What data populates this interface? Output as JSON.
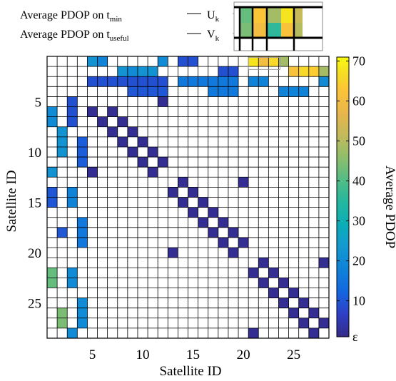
{
  "chart_data": {
    "type": "heatmap",
    "xlabel": "Satellite ID",
    "ylabel": "Satellite ID",
    "x_ticks": [
      5,
      10,
      15,
      20,
      25
    ],
    "y_ticks": [
      5,
      10,
      15,
      20,
      25
    ],
    "grid_size": 28,
    "colorbar": {
      "label": "Average PDOP",
      "range": [
        1,
        71
      ],
      "ticks": [
        {
          "value": 70,
          "label": "70"
        },
        {
          "value": 60,
          "label": "60"
        },
        {
          "value": 50,
          "label": "50"
        },
        {
          "value": 40,
          "label": "40"
        },
        {
          "value": 30,
          "label": "30"
        },
        {
          "value": 20,
          "label": "20"
        },
        {
          "value": 10,
          "label": "10"
        },
        {
          "value": 1,
          "label": "ε"
        }
      ]
    },
    "inset": {
      "label_u_main": "Average PDOP on t",
      "label_u_sub": "min",
      "label_u_symbol": "U",
      "label_u_symbol_sub": "k",
      "label_v_main": "Average PDOP on t",
      "label_v_sub": "useful",
      "label_v_symbol": "V",
      "label_v_symbol_sub": "k",
      "top_values": [
        42,
        63,
        48,
        68,
        52
      ],
      "bottom_values": [
        44,
        60,
        36,
        62,
        50
      ]
    },
    "cells": [
      {
        "row": 1,
        "col": 5,
        "value": 22
      },
      {
        "row": 1,
        "col": 6,
        "value": 18
      },
      {
        "row": 1,
        "col": 12,
        "value": 20
      },
      {
        "row": 1,
        "col": 14,
        "value": 9
      },
      {
        "row": 1,
        "col": 15,
        "value": 9
      },
      {
        "row": 1,
        "col": 21,
        "value": 68
      },
      {
        "row": 1,
        "col": 22,
        "value": 60
      },
      {
        "row": 1,
        "col": 23,
        "value": 66
      },
      {
        "row": 1,
        "col": 24,
        "value": 48
      },
      {
        "row": 2,
        "col": 8,
        "value": 22
      },
      {
        "row": 2,
        "col": 9,
        "value": 20
      },
      {
        "row": 2,
        "col": 10,
        "value": 22
      },
      {
        "row": 2,
        "col": 11,
        "value": 22
      },
      {
        "row": 2,
        "col": 18,
        "value": 9
      },
      {
        "row": 2,
        "col": 19,
        "value": 9
      },
      {
        "row": 2,
        "col": 25,
        "value": 62
      },
      {
        "row": 2,
        "col": 26,
        "value": 66
      },
      {
        "row": 2,
        "col": 27,
        "value": 64
      },
      {
        "row": 2,
        "col": 28,
        "value": 48
      },
      {
        "row": 3,
        "col": 5,
        "value": 9
      },
      {
        "row": 3,
        "col": 6,
        "value": 9
      },
      {
        "row": 3,
        "col": 7,
        "value": 9
      },
      {
        "row": 3,
        "col": 8,
        "value": 9
      },
      {
        "row": 3,
        "col": 9,
        "value": 9
      },
      {
        "row": 3,
        "col": 10,
        "value": 9
      },
      {
        "row": 3,
        "col": 11,
        "value": 9
      },
      {
        "row": 3,
        "col": 12,
        "value": 9
      },
      {
        "row": 3,
        "col": 14,
        "value": 16
      },
      {
        "row": 3,
        "col": 15,
        "value": 16
      },
      {
        "row": 3,
        "col": 16,
        "value": 16
      },
      {
        "row": 3,
        "col": 17,
        "value": 16
      },
      {
        "row": 3,
        "col": 18,
        "value": 16
      },
      {
        "row": 3,
        "col": 19,
        "value": 16
      },
      {
        "row": 3,
        "col": 21,
        "value": 18
      },
      {
        "row": 3,
        "col": 22,
        "value": 18
      },
      {
        "row": 3,
        "col": 28,
        "value": 20
      },
      {
        "row": 4,
        "col": 9,
        "value": 10
      },
      {
        "row": 4,
        "col": 10,
        "value": 10
      },
      {
        "row": 4,
        "col": 11,
        "value": 10
      },
      {
        "row": 4,
        "col": 12,
        "value": 10
      },
      {
        "row": 4,
        "col": 17,
        "value": 16
      },
      {
        "row": 4,
        "col": 18,
        "value": 16
      },
      {
        "row": 4,
        "col": 19,
        "value": 16
      },
      {
        "row": 4,
        "col": 24,
        "value": 18
      },
      {
        "row": 4,
        "col": 25,
        "value": 18
      },
      {
        "row": 4,
        "col": 26,
        "value": 18
      },
      {
        "row": 5,
        "col": 3,
        "value": 9
      },
      {
        "row": 5,
        "col": 12,
        "value": 2
      },
      {
        "row": 6,
        "col": 1,
        "value": 20
      },
      {
        "row": 6,
        "col": 3,
        "value": 9
      },
      {
        "row": 6,
        "col": 5,
        "value": 2
      },
      {
        "row": 6,
        "col": 7,
        "value": 2
      },
      {
        "row": 7,
        "col": 1,
        "value": 20
      },
      {
        "row": 7,
        "col": 3,
        "value": 9
      },
      {
        "row": 7,
        "col": 6,
        "value": 2
      },
      {
        "row": 7,
        "col": 8,
        "value": 2
      },
      {
        "row": 8,
        "col": 2,
        "value": 22
      },
      {
        "row": 8,
        "col": 7,
        "value": 2
      },
      {
        "row": 8,
        "col": 9,
        "value": 2
      },
      {
        "row": 9,
        "col": 2,
        "value": 22
      },
      {
        "row": 9,
        "col": 4,
        "value": 11
      },
      {
        "row": 9,
        "col": 8,
        "value": 2
      },
      {
        "row": 9,
        "col": 10,
        "value": 2
      },
      {
        "row": 10,
        "col": 2,
        "value": 22
      },
      {
        "row": 10,
        "col": 4,
        "value": 11
      },
      {
        "row": 10,
        "col": 9,
        "value": 2
      },
      {
        "row": 10,
        "col": 11,
        "value": 2
      },
      {
        "row": 11,
        "col": 4,
        "value": 11
      },
      {
        "row": 11,
        "col": 10,
        "value": 2
      },
      {
        "row": 11,
        "col": 12,
        "value": 2
      },
      {
        "row": 12,
        "col": 1,
        "value": 22
      },
      {
        "row": 12,
        "col": 5,
        "value": 2
      },
      {
        "row": 12,
        "col": 11,
        "value": 2
      },
      {
        "row": 13,
        "col": 14,
        "value": 2
      },
      {
        "row": 13,
        "col": 20,
        "value": 2
      },
      {
        "row": 14,
        "col": 1,
        "value": 10
      },
      {
        "row": 14,
        "col": 3,
        "value": 18
      },
      {
        "row": 14,
        "col": 13,
        "value": 2
      },
      {
        "row": 14,
        "col": 15,
        "value": 2
      },
      {
        "row": 15,
        "col": 1,
        "value": 10
      },
      {
        "row": 15,
        "col": 3,
        "value": 18
      },
      {
        "row": 15,
        "col": 14,
        "value": 2
      },
      {
        "row": 15,
        "col": 16,
        "value": 2
      },
      {
        "row": 16,
        "col": 15,
        "value": 2
      },
      {
        "row": 16,
        "col": 17,
        "value": 2
      },
      {
        "row": 17,
        "col": 4,
        "value": 16
      },
      {
        "row": 17,
        "col": 16,
        "value": 2
      },
      {
        "row": 17,
        "col": 18,
        "value": 2
      },
      {
        "row": 18,
        "col": 2,
        "value": 10
      },
      {
        "row": 18,
        "col": 4,
        "value": 16
      },
      {
        "row": 18,
        "col": 17,
        "value": 2
      },
      {
        "row": 18,
        "col": 19,
        "value": 2
      },
      {
        "row": 19,
        "col": 4,
        "value": 16
      },
      {
        "row": 19,
        "col": 18,
        "value": 2
      },
      {
        "row": 19,
        "col": 20,
        "value": 2
      },
      {
        "row": 20,
        "col": 13,
        "value": 2
      },
      {
        "row": 20,
        "col": 19,
        "value": 2
      },
      {
        "row": 21,
        "col": 22,
        "value": 2
      },
      {
        "row": 21,
        "col": 28,
        "value": 2
      },
      {
        "row": 22,
        "col": 1,
        "value": 42
      },
      {
        "row": 22,
        "col": 3,
        "value": 20
      },
      {
        "row": 22,
        "col": 21,
        "value": 2
      },
      {
        "row": 22,
        "col": 23,
        "value": 2
      },
      {
        "row": 23,
        "col": 1,
        "value": 42
      },
      {
        "row": 23,
        "col": 3,
        "value": 20
      },
      {
        "row": 23,
        "col": 22,
        "value": 2
      },
      {
        "row": 23,
        "col": 24,
        "value": 2
      },
      {
        "row": 24,
        "col": 23,
        "value": 2
      },
      {
        "row": 24,
        "col": 25,
        "value": 2
      },
      {
        "row": 25,
        "col": 4,
        "value": 20
      },
      {
        "row": 25,
        "col": 24,
        "value": 2
      },
      {
        "row": 25,
        "col": 26,
        "value": 2
      },
      {
        "row": 26,
        "col": 2,
        "value": 44
      },
      {
        "row": 26,
        "col": 4,
        "value": 20
      },
      {
        "row": 26,
        "col": 25,
        "value": 2
      },
      {
        "row": 26,
        "col": 27,
        "value": 2
      },
      {
        "row": 27,
        "col": 2,
        "value": 44
      },
      {
        "row": 27,
        "col": 4,
        "value": 20
      },
      {
        "row": 27,
        "col": 26,
        "value": 2
      },
      {
        "row": 27,
        "col": 28,
        "value": 2
      },
      {
        "row": 28,
        "col": 3,
        "value": 20
      },
      {
        "row": 28,
        "col": 21,
        "value": 2
      },
      {
        "row": 28,
        "col": 27,
        "value": 2
      }
    ]
  }
}
